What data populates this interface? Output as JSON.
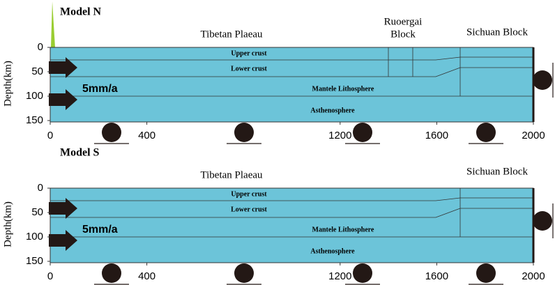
{
  "panels": [
    {
      "title": "Model N",
      "regions": [
        {
          "lines": [
            "Tibetan Plaeau"
          ]
        },
        {
          "lines": [
            "Ruoergai",
            "Block"
          ]
        },
        {
          "lines": [
            "Sichuan Block"
          ]
        }
      ],
      "layers": [
        "Upper crust",
        "Lower crust",
        "Mantele Lithosphere",
        "Asthenosphere"
      ],
      "velocity": "5mm/a",
      "y_axis_label": "Depth(km)",
      "yticks": [
        0,
        50,
        100,
        150
      ],
      "xticks": [
        0,
        400,
        1200,
        1600,
        2000
      ]
    },
    {
      "title": "Model S",
      "regions": [
        {
          "lines": [
            "Tibetan Plaeau"
          ]
        },
        {
          "lines": [
            "Sichuan Block"
          ]
        }
      ],
      "layers": [
        "Upper crust",
        "Lower crust",
        "Mantele Lithosphere",
        "Asthenosphere"
      ],
      "velocity": "5mm/a",
      "y_axis_label": "Depth(km)",
      "yticks": [
        0,
        50,
        100,
        150
      ],
      "xticks": [
        0,
        400,
        1200,
        1600,
        2000
      ]
    }
  ]
}
